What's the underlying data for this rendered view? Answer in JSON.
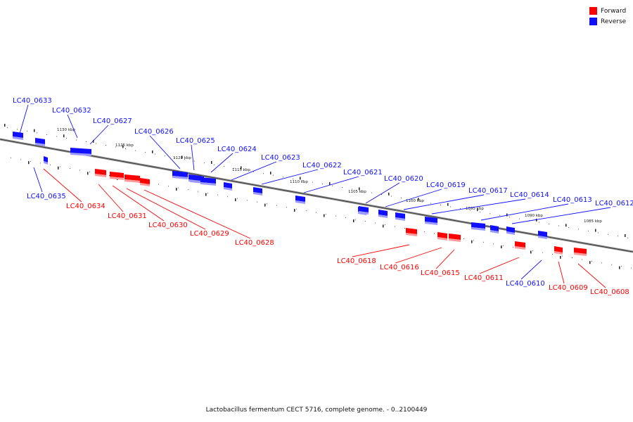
{
  "legend": {
    "forward_label": "Forward",
    "reverse_label": "Reverse",
    "forward_color": "#ff0000",
    "reverse_color": "#1010ff"
  },
  "caption": "Lactobacillus fermentum CECT 5716, complete genome. - 0..2100449",
  "scale_ticks": [
    "1130 kbp",
    "1125 kbp",
    "1120 kbp",
    "1115 kbp",
    "1110 kbp",
    "1105 kbp",
    "1100 kbp",
    "1095 kbp",
    "1090 kbp",
    "1085 kbp"
  ],
  "genes": [
    {
      "id": "LC40_0633",
      "strand": "reverse"
    },
    {
      "id": "LC40_0632",
      "strand": "reverse"
    },
    {
      "id": "LC40_0627",
      "strand": "reverse"
    },
    {
      "id": "LC40_0626",
      "strand": "reverse"
    },
    {
      "id": "LC40_0625",
      "strand": "reverse"
    },
    {
      "id": "LC40_0624",
      "strand": "reverse"
    },
    {
      "id": "LC40_0623",
      "strand": "reverse"
    },
    {
      "id": "LC40_0622",
      "strand": "reverse"
    },
    {
      "id": "LC40_0621",
      "strand": "reverse"
    },
    {
      "id": "LC40_0620",
      "strand": "reverse"
    },
    {
      "id": "LC40_0619",
      "strand": "reverse"
    },
    {
      "id": "LC40_0617",
      "strand": "reverse"
    },
    {
      "id": "LC40_0614",
      "strand": "reverse"
    },
    {
      "id": "LC40_0613",
      "strand": "reverse"
    },
    {
      "id": "LC40_0612",
      "strand": "reverse"
    },
    {
      "id": "LC40_0635",
      "strand": "reverse"
    },
    {
      "id": "LC40_0610",
      "strand": "reverse"
    },
    {
      "id": "LC40_0634",
      "strand": "forward"
    },
    {
      "id": "LC40_0631",
      "strand": "forward"
    },
    {
      "id": "LC40_0630",
      "strand": "forward"
    },
    {
      "id": "LC40_0629",
      "strand": "forward"
    },
    {
      "id": "LC40_0628",
      "strand": "forward"
    },
    {
      "id": "LC40_0618",
      "strand": "forward"
    },
    {
      "id": "LC40_0616",
      "strand": "forward"
    },
    {
      "id": "LC40_0615",
      "strand": "forward"
    },
    {
      "id": "LC40_0611",
      "strand": "forward"
    },
    {
      "id": "LC40_0609",
      "strand": "forward"
    },
    {
      "id": "LC40_0608",
      "strand": "forward"
    }
  ]
}
